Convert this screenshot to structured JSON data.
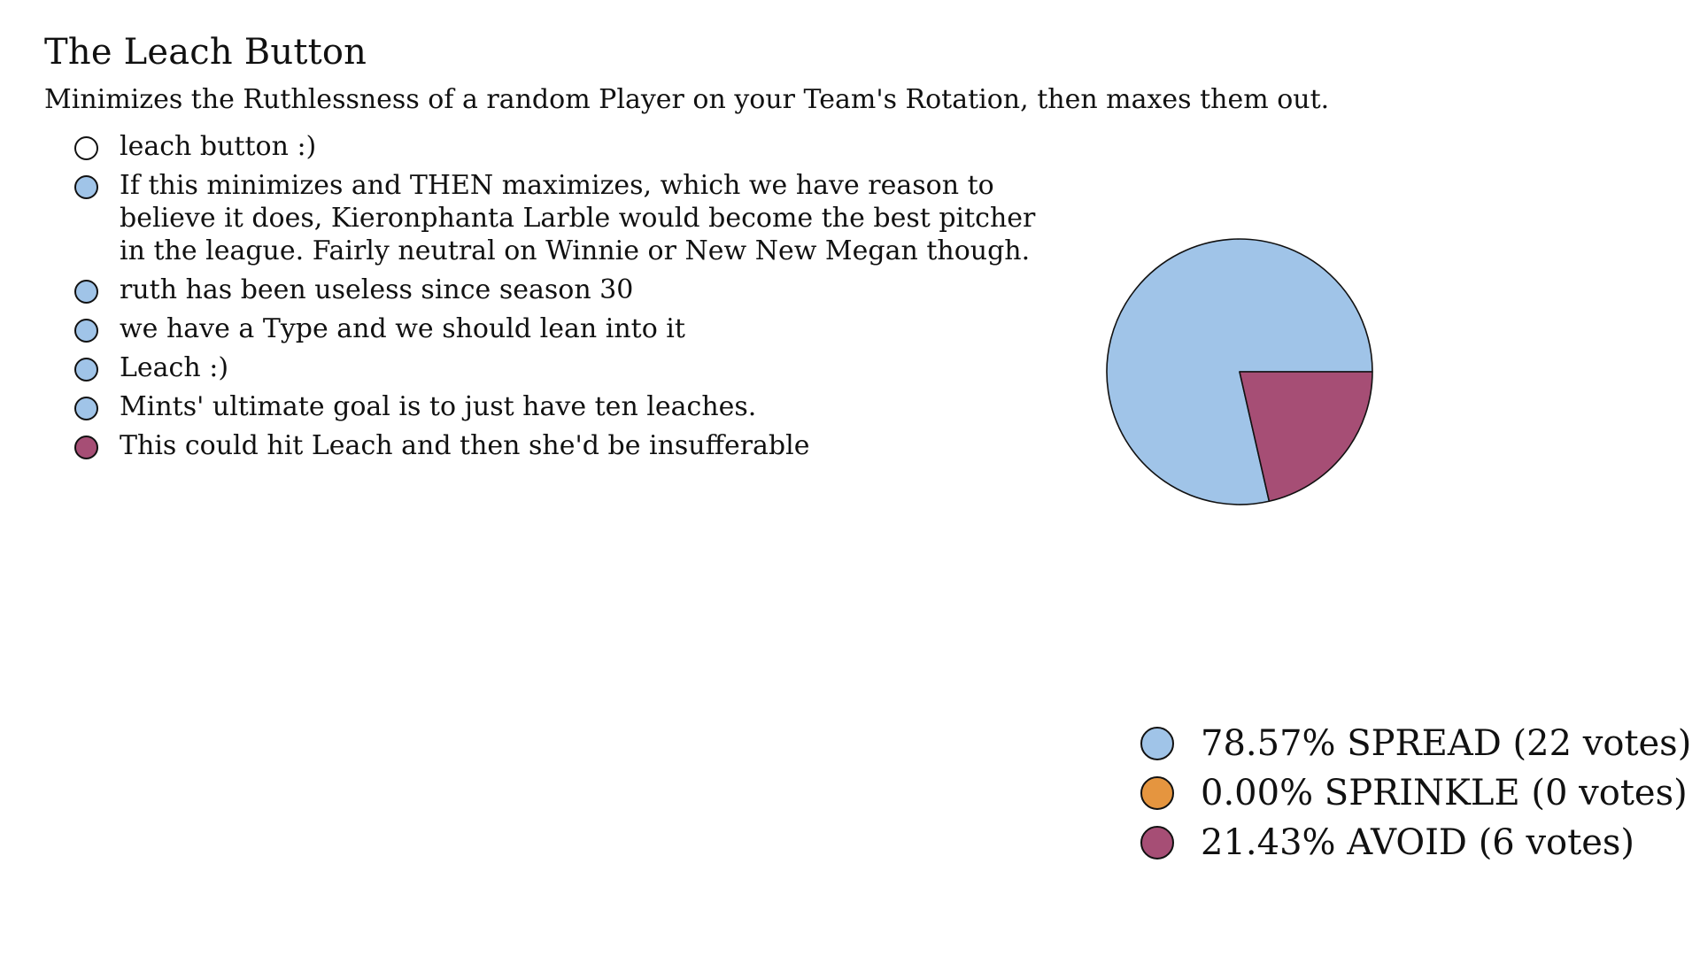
{
  "title": "The Leach Button",
  "subtitle": "Minimizes the Ruthlessness of a random Player on your Team's Rotation, then maxes them out.",
  "colors": {
    "none": "#ffffff",
    "spread": "#a0c4e8",
    "sprinkle": "#e5953f",
    "avoid": "#a64e75"
  },
  "comments": [
    {
      "text": "leach button :)",
      "color": "#ffffff"
    },
    {
      "text": "If this minimizes and THEN maximizes, which we have reason to\nbelieve it does, Kieronphanta Larble would become the best pitcher\nin the league. Fairly neutral on Winnie or New New Megan though.",
      "color": "#a0c4e8"
    },
    {
      "text": "ruth has been useless since season 30",
      "color": "#a0c4e8"
    },
    {
      "text": "we have a Type and we should lean into it",
      "color": "#a0c4e8"
    },
    {
      "text": "Leach :)",
      "color": "#a0c4e8"
    },
    {
      "text": "Mints' ultimate goal is to just have ten leaches.",
      "color": "#a0c4e8"
    },
    {
      "text": "This could hit Leach and then she'd be insufferable",
      "color": "#a64e75"
    }
  ],
  "chart_data": {
    "type": "pie",
    "slices": [
      {
        "name": "SPREAD",
        "votes": 22,
        "percent": 78.57,
        "color": "#a0c4e8"
      },
      {
        "name": "SPRINKLE",
        "votes": 0,
        "percent": 0.0,
        "color": "#e5953f"
      },
      {
        "name": "AVOID",
        "votes": 6,
        "percent": 21.43,
        "color": "#a64e75"
      }
    ],
    "legend": [
      "78.57% SPREAD (22 votes)",
      "0.00% SPRINKLE (0 votes)",
      "21.43% AVOID (6 votes)"
    ],
    "legend_position": "bottom-right"
  }
}
